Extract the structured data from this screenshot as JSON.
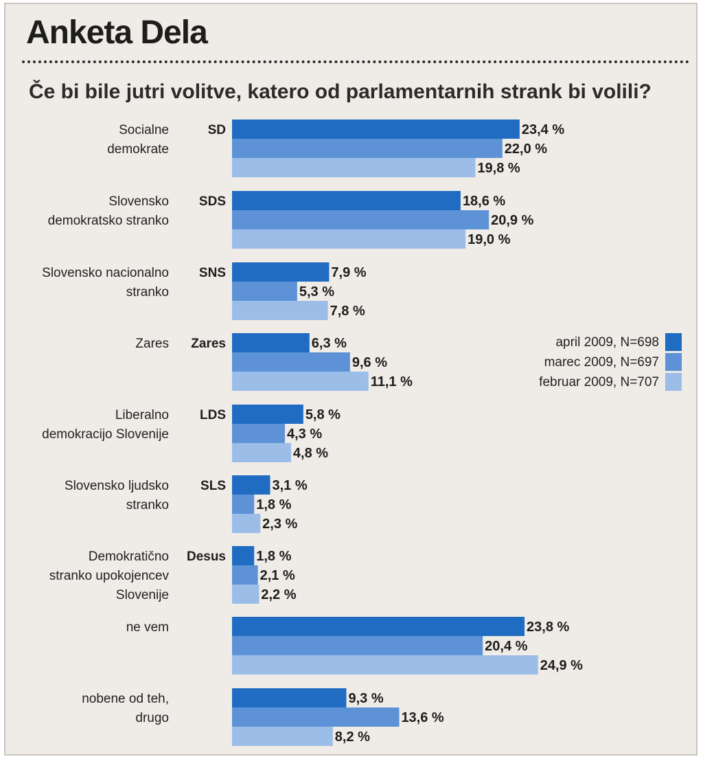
{
  "title": "Anketa Dela",
  "question": "Če bi bile jutri volitve, katero od parlamentarnih strank bi volili?",
  "colors": {
    "april": "#1f6cc2",
    "marec": "#5d93d6",
    "februar": "#9bbde8",
    "background": "#efebe6"
  },
  "legend": [
    {
      "label": "april 2009, N=698",
      "color_key": "april"
    },
    {
      "label": "marec 2009, N=697",
      "color_key": "marec"
    },
    {
      "label": "februar 2009, N=707",
      "color_key": "februar"
    }
  ],
  "chart_data": {
    "type": "bar",
    "orientation": "horizontal",
    "unit": "%",
    "categories": [
      {
        "name": [
          "Socialne",
          "demokrate"
        ],
        "abbr": "SD"
      },
      {
        "name": [
          "Slovensko",
          "demokratsko stranko"
        ],
        "abbr": "SDS"
      },
      {
        "name": [
          "Slovensko nacionalno",
          "stranko"
        ],
        "abbr": "SNS"
      },
      {
        "name": [
          "Zares"
        ],
        "abbr": "Zares"
      },
      {
        "name": [
          "Liberalno",
          "demokracijo Slovenije"
        ],
        "abbr": "LDS"
      },
      {
        "name": [
          "Slovensko ljudsko",
          "stranko"
        ],
        "abbr": "SLS"
      },
      {
        "name": [
          "Demokratično",
          "stranko upokojencev",
          "Slovenije"
        ],
        "abbr": "Desus"
      },
      {
        "name": [
          "ne vem"
        ],
        "abbr": ""
      },
      {
        "name": [
          "nobene od teh,",
          "drugo"
        ],
        "abbr": ""
      }
    ],
    "series": [
      {
        "name": "april 2009, N=698",
        "color_key": "april",
        "values": [
          23.4,
          18.6,
          7.9,
          6.3,
          5.8,
          3.1,
          1.8,
          23.8,
          9.3
        ],
        "labels": [
          "23,4 %",
          "18,6 %",
          "7,9 %",
          "6,3 %",
          "5,8 %",
          "3,1 %",
          "1,8 %",
          "23,8 %",
          "9,3 %"
        ]
      },
      {
        "name": "marec 2009, N=697",
        "color_key": "marec",
        "values": [
          22.0,
          20.9,
          5.3,
          9.6,
          4.3,
          1.8,
          2.1,
          20.4,
          13.6
        ],
        "labels": [
          "22,0 %",
          "20,9 %",
          "5,3 %",
          "9,6 %",
          "4,3 %",
          "1,8 %",
          "2,1 %",
          "20,4 %",
          "13,6 %"
        ]
      },
      {
        "name": "februar 2009, N=707",
        "color_key": "februar",
        "values": [
          19.8,
          19.0,
          7.8,
          11.1,
          4.8,
          2.3,
          2.2,
          24.9,
          8.2
        ],
        "labels": [
          "19,8 %",
          "19,0 %",
          "7,8 %",
          "11,1 %",
          "4,8 %",
          "2,3 %",
          "2,2 %",
          "24,9 %",
          "8,2 %"
        ]
      }
    ]
  }
}
